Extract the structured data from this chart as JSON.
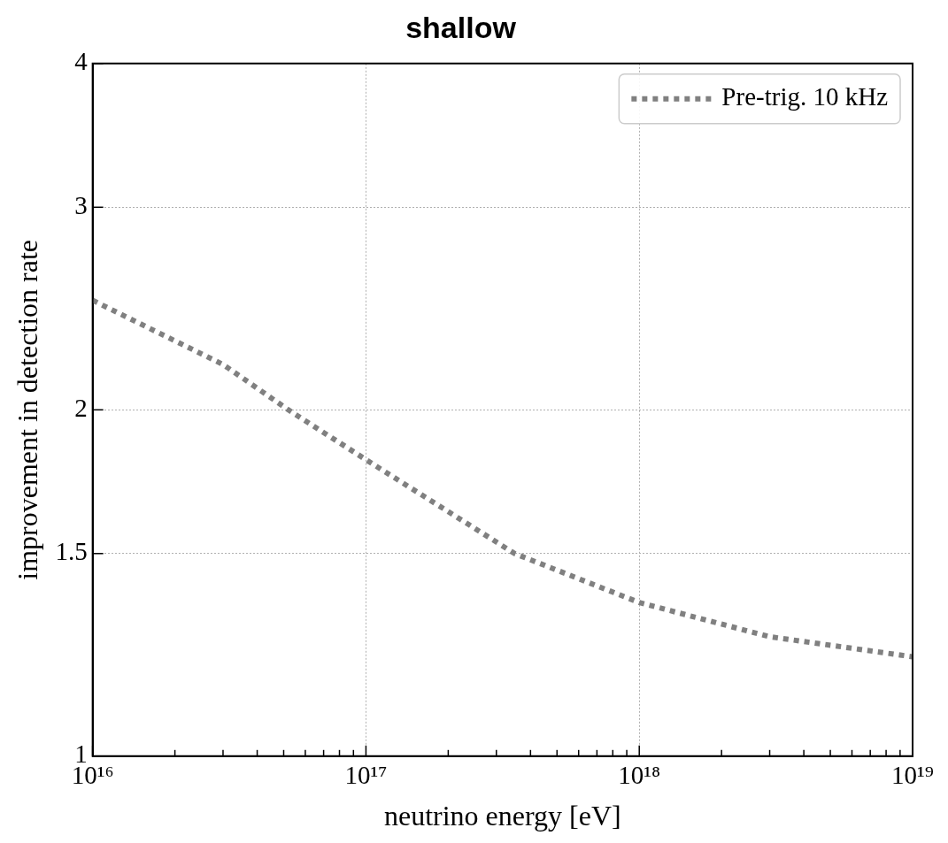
{
  "chart_data": {
    "type": "line",
    "title": "shallow",
    "xlabel": "neutrino energy [eV]",
    "ylabel": "improvement in detection rate",
    "log": "xy",
    "xlim": [
      1e+16,
      1e+19
    ],
    "ylim": [
      1,
      4
    ],
    "xticks": [
      {
        "value": 1e+16,
        "label": "10¹⁶"
      },
      {
        "value": 2e+16,
        "label": null
      },
      {
        "value": 3e+16,
        "label": null
      },
      {
        "value": 4e+16,
        "label": null
      },
      {
        "value": 5e+16,
        "label": null
      },
      {
        "value": 6e+16,
        "label": null
      },
      {
        "value": 7e+16,
        "label": null
      },
      {
        "value": 8e+16,
        "label": null
      },
      {
        "value": 9e+16,
        "label": null
      },
      {
        "value": 1e+17,
        "label": "10¹⁷"
      },
      {
        "value": 2e+17,
        "label": null
      },
      {
        "value": 3e+17,
        "label": null
      },
      {
        "value": 4e+17,
        "label": null
      },
      {
        "value": 5e+17,
        "label": null
      },
      {
        "value": 6e+17,
        "label": null
      },
      {
        "value": 7e+17,
        "label": null
      },
      {
        "value": 8e+17,
        "label": null
      },
      {
        "value": 9e+17,
        "label": null
      },
      {
        "value": 1e+18,
        "label": "10¹⁸"
      },
      {
        "value": 2e+18,
        "label": null
      },
      {
        "value": 3e+18,
        "label": null
      },
      {
        "value": 4e+18,
        "label": null
      },
      {
        "value": 5e+18,
        "label": null
      },
      {
        "value": 6e+18,
        "label": null
      },
      {
        "value": 7e+18,
        "label": null
      },
      {
        "value": 8e+18,
        "label": null
      },
      {
        "value": 9e+18,
        "label": null
      },
      {
        "value": 1e+19,
        "label": "10¹⁹"
      }
    ],
    "yticks": [
      1,
      1.5,
      2,
      3,
      4
    ],
    "grid": true,
    "legend": "top right",
    "line_style": "dotted",
    "marker": "none",
    "series": [
      {
        "name": "Pre-trig. 10 kHz",
        "color": "#808080",
        "x": [
          1e+16,
          3e+16,
          5.2e+16,
          1e+17,
          3.5e+17,
          1e+18,
          3e+18,
          1e+19
        ],
        "values": [
          2.49,
          2.19,
          2.0,
          1.81,
          1.5,
          1.36,
          1.27,
          1.22
        ]
      }
    ]
  }
}
